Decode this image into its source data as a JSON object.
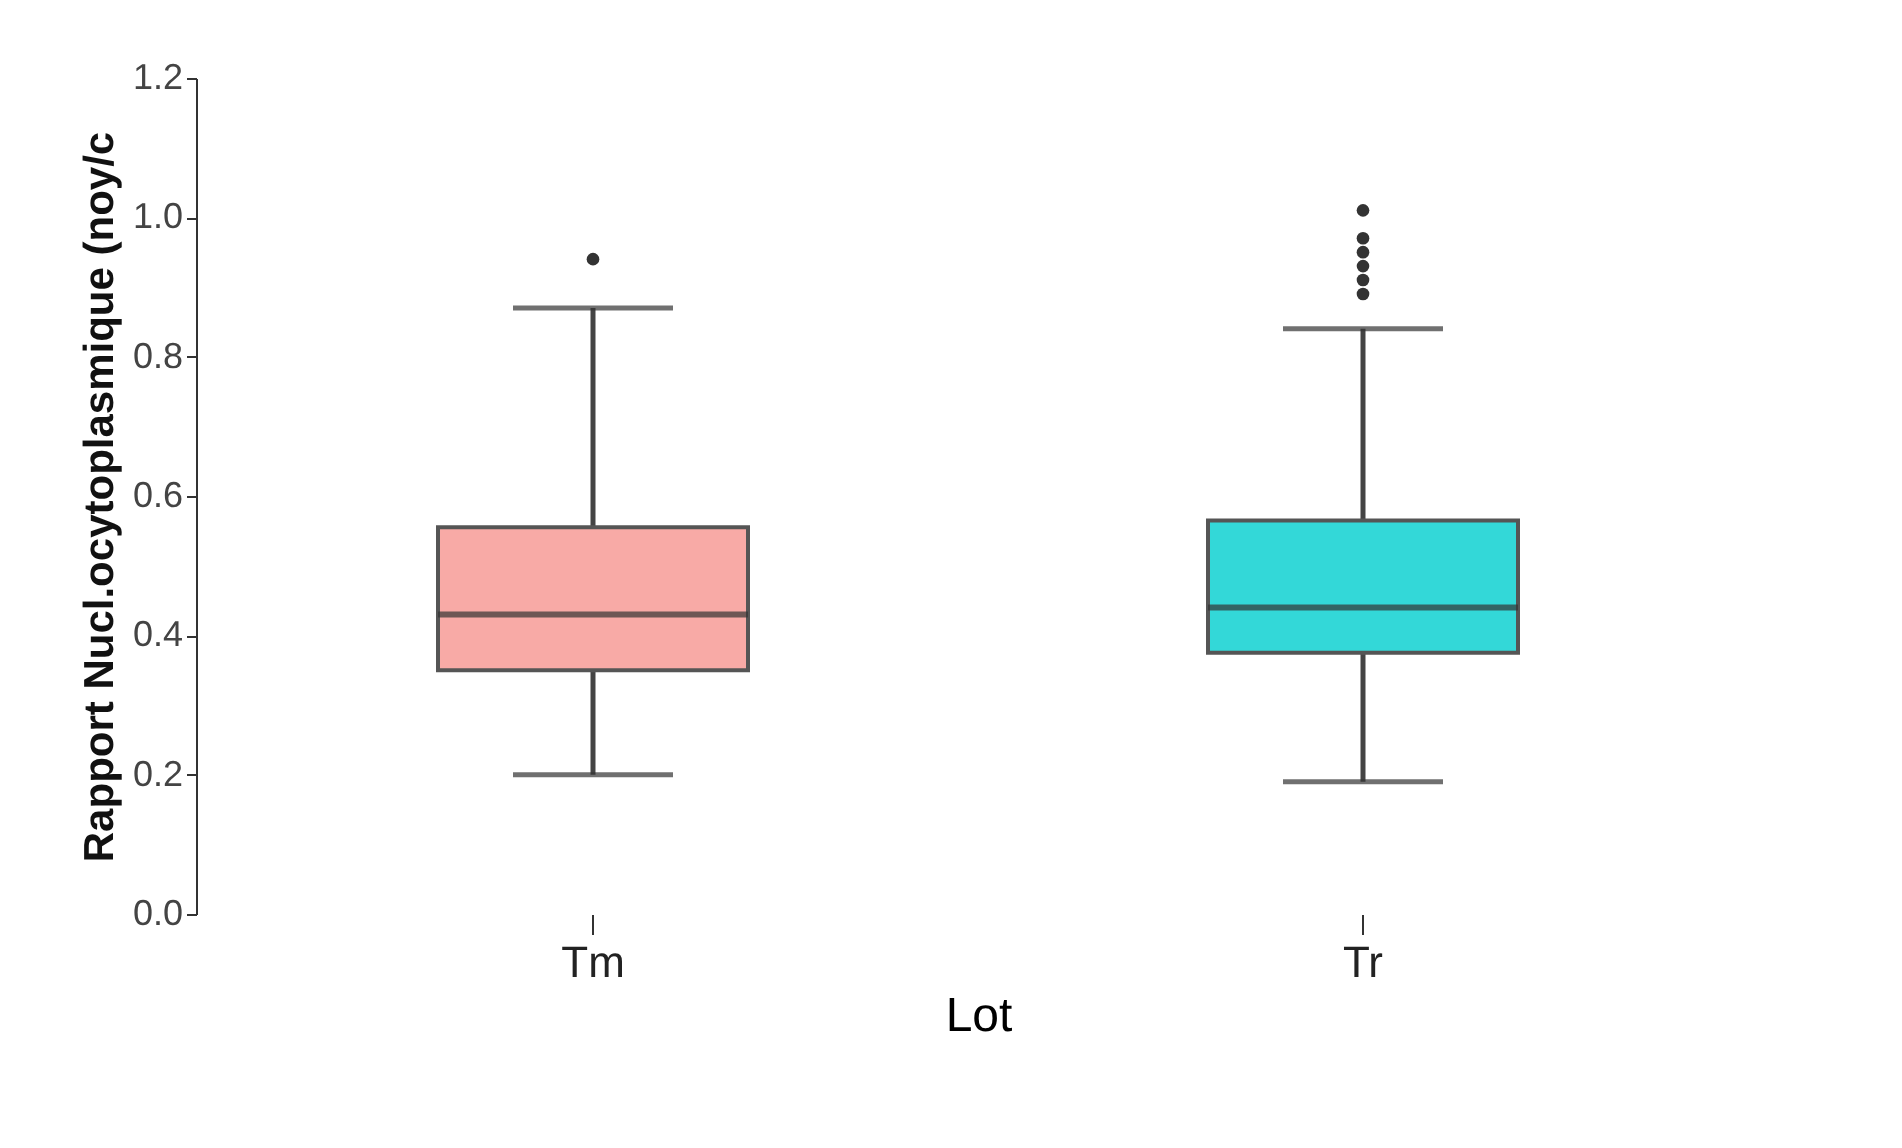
{
  "chart_data": {
    "type": "box",
    "xlabel": "Lot",
    "ylabel": "Rapport Nucl.ocytoplasmique (noy/c",
    "categories": [
      "Tm",
      "Tr"
    ],
    "ylim": [
      0,
      1.2
    ],
    "yticks": [
      {
        "value": 0,
        "label": "0.0"
      },
      0.2,
      0.4,
      0.6,
      0.8,
      {
        "value": 1,
        "label": "1.0"
      },
      {
        "value": 1.2,
        "label": "1.2"
      }
    ],
    "colors": [
      "#f8aaa6",
      "#33d8d8"
    ],
    "boxes": [
      {
        "low": 0.2,
        "q1": 0.35,
        "median": 0.43,
        "q3": 0.555,
        "high": 0.87,
        "outliers": [
          0.94
        ]
      },
      {
        "low": 0.19,
        "q1": 0.375,
        "median": 0.44,
        "q3": 0.565,
        "high": 0.84,
        "outliers": [
          0.89,
          0.91,
          0.93,
          0.95,
          0.97,
          1.01
        ]
      }
    ],
    "grid": false
  }
}
